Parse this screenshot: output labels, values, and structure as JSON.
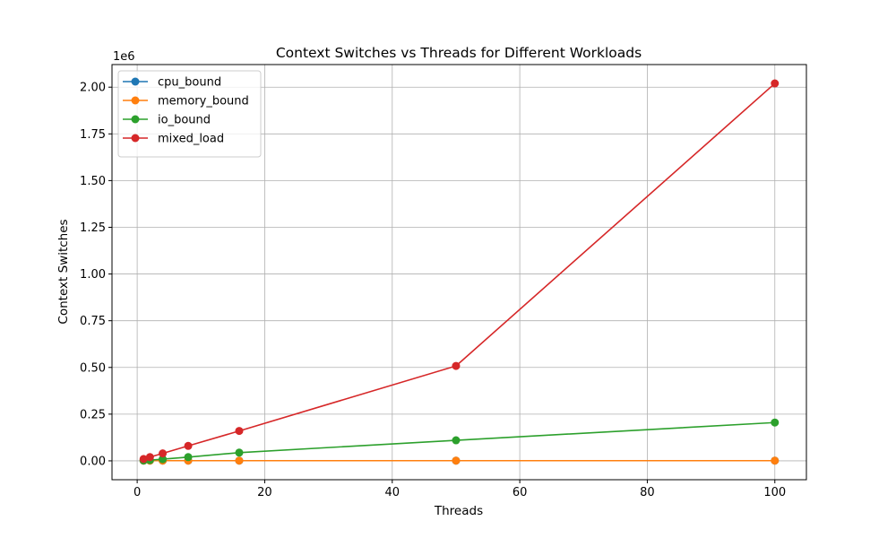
{
  "chart_data": {
    "type": "line",
    "title": "Context Switches vs Threads for Different Workloads",
    "xlabel": "Threads",
    "ylabel": "Context Switches",
    "y_offset_label": "1e6",
    "xlim": [
      -3.95,
      104.95
    ],
    "ylim": [
      -101000,
      2121000
    ],
    "xticks": [
      0,
      20,
      40,
      60,
      80,
      100
    ],
    "xtick_labels": [
      "0",
      "20",
      "40",
      "60",
      "80",
      "100"
    ],
    "yticks": [
      0,
      250000,
      500000,
      750000,
      1000000,
      1250000,
      1500000,
      1750000,
      2000000
    ],
    "ytick_labels": [
      "0.00",
      "0.25",
      "0.50",
      "0.75",
      "1.00",
      "1.25",
      "1.50",
      "1.75",
      "2.00"
    ],
    "grid": true,
    "legend_position": "top-left",
    "x": [
      1,
      2,
      4,
      8,
      16,
      50,
      100
    ],
    "series": [
      {
        "name": "cpu_bound",
        "color": "#1f77b4",
        "marker": "circle",
        "values": [
          1000,
          1000,
          1000,
          1000,
          1000,
          1000,
          1000
        ]
      },
      {
        "name": "memory_bound",
        "color": "#ff7f0e",
        "marker": "circle",
        "values": [
          1000,
          1000,
          1000,
          1000,
          1000,
          1000,
          1000
        ]
      },
      {
        "name": "io_bound",
        "color": "#2ca02c",
        "marker": "circle",
        "values": [
          2000,
          4000,
          9000,
          20000,
          44000,
          110000,
          205000
        ]
      },
      {
        "name": "mixed_load",
        "color": "#d62728",
        "marker": "circle",
        "values": [
          10000,
          20000,
          40000,
          80000,
          160000,
          508000,
          2020000
        ]
      }
    ]
  }
}
